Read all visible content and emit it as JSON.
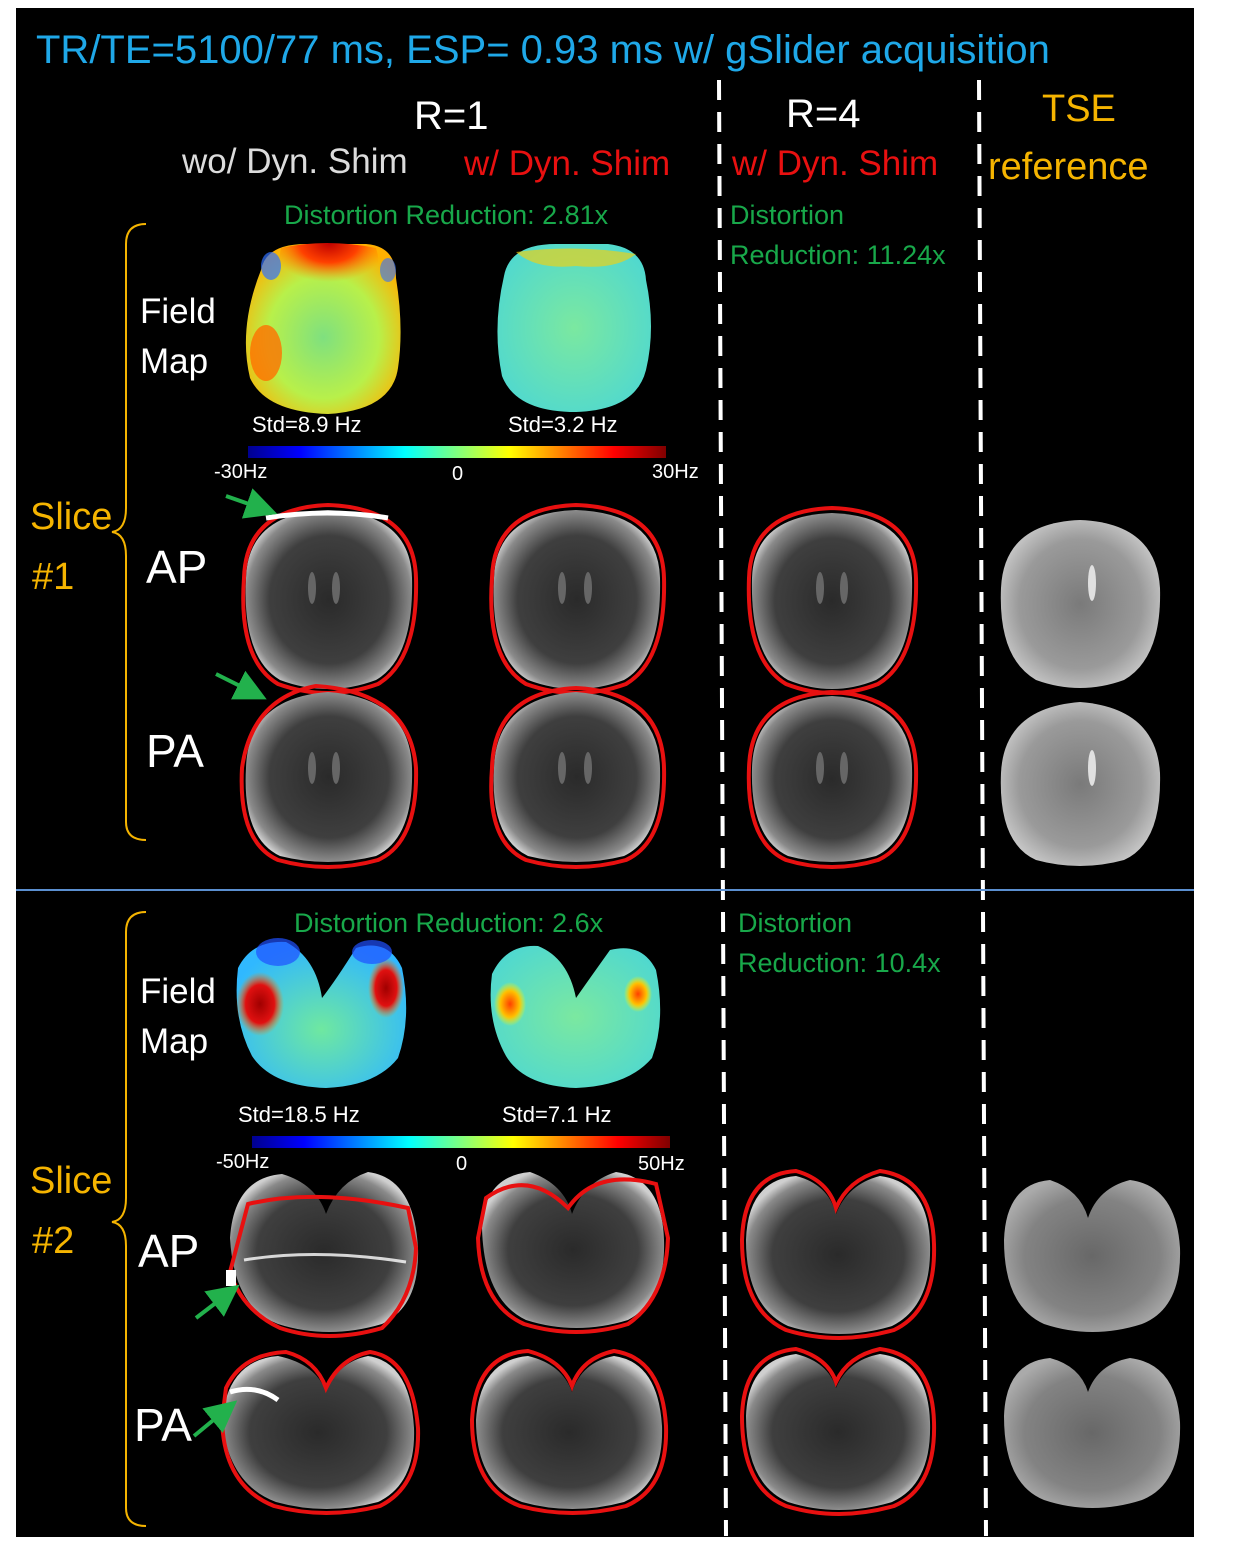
{
  "figure": {
    "title": "TR/TE=5100/77 ms, ESP= 0.93 ms w/ gSlider acquisition",
    "columns": {
      "r1": "R=1",
      "r4": "R=4",
      "r1_without": "wo/ Dyn. Shim",
      "r1_with": "w/ Dyn. Shim",
      "r4_with": "w/ Dyn. Shim",
      "tse_line1": "TSE",
      "tse_line2": "reference"
    },
    "slice1": {
      "label_line1": "Slice",
      "label_line2": "#1",
      "distortion_r1": "Distortion Reduction: 2.81x",
      "distortion_r4_line1": "Distortion",
      "distortion_r4_line2": "Reduction: 11.24x",
      "fieldmap_line1": "Field",
      "fieldmap_line2": "Map",
      "std_without": "Std=8.9 Hz",
      "std_with": "Std=3.2 Hz",
      "colorbar_min": "-30Hz",
      "colorbar_mid": "0",
      "colorbar_max": "30Hz",
      "row_ap": "AP",
      "row_pa": "PA"
    },
    "slice2": {
      "label_line1": "Slice",
      "label_line2": "#2",
      "distortion_r1": "Distortion Reduction: 2.6x",
      "distortion_r4_line1": "Distortion",
      "distortion_r4_line2": "Reduction: 10.4x",
      "fieldmap_line1": "Field",
      "fieldmap_line2": "Map",
      "std_without": "Std=18.5 Hz",
      "std_with": "Std=7.1 Hz",
      "colorbar_min": "-50Hz",
      "colorbar_mid": "0",
      "colorbar_max": "50Hz",
      "row_ap": "AP",
      "row_pa": "PA"
    },
    "colors": {
      "title": "#1fa8e8",
      "dyn_shim": "#e81010",
      "tse": "#f5b400",
      "distortion": "#18a84a",
      "separator": "#5b8fd0",
      "arrow": "#22b14c"
    }
  }
}
